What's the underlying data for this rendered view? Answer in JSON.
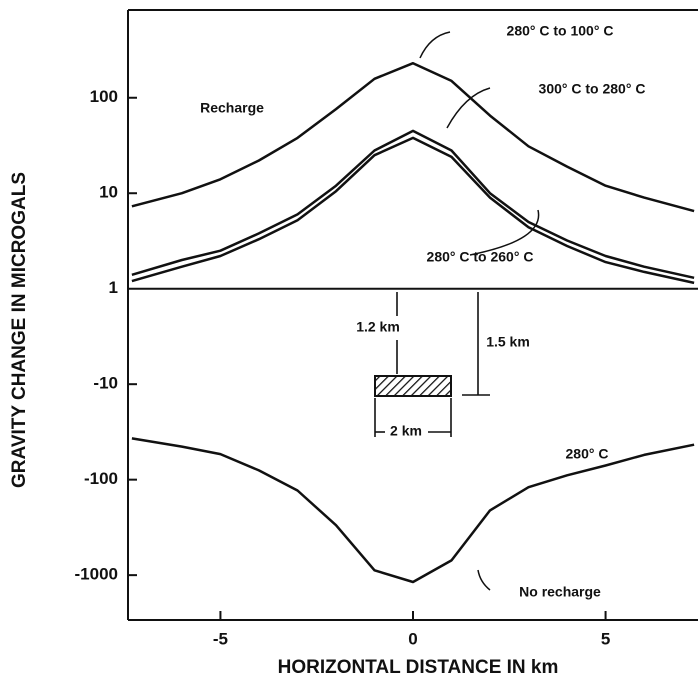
{
  "chart_data": {
    "type": "line",
    "x_label": "HORIZONTAL DISTANCE IN km",
    "y_label": "GRAVITY CHANGE IN MICROGALS",
    "y_scale": "symlog",
    "xlim": [
      -7.4,
      7.4
    ],
    "xticks": [
      -5,
      0,
      5
    ],
    "ylim": [
      -2950,
      830
    ],
    "yticks": [
      100,
      10,
      1,
      -10,
      -100,
      -1000
    ],
    "x": [
      -7.3,
      -6,
      -5,
      -4,
      -3,
      -2,
      -1,
      0,
      1,
      2,
      3,
      4,
      5,
      6,
      7.3
    ],
    "series": [
      {
        "name": "280° C to 100° C",
        "color": "#111111",
        "values": [
          7.3,
          10,
          14,
          22,
          38,
          76,
          158,
          230,
          150,
          65,
          31,
          19,
          12,
          9,
          6.5
        ]
      },
      {
        "name": "300° C to 280° C",
        "color": "#111111",
        "values": [
          1.4,
          2,
          2.5,
          3.8,
          6,
          12,
          28,
          45,
          28,
          10,
          5,
          3.2,
          2.2,
          1.7,
          1.3
        ]
      },
      {
        "name": "280° C to 260° C",
        "color": "#111111",
        "values": [
          1.2,
          1.7,
          2.2,
          3.3,
          5.2,
          10.5,
          25,
          38,
          24,
          9,
          4.4,
          2.8,
          1.9,
          1.5,
          1.15
        ]
      },
      {
        "name": "No recharge",
        "color": "#111111",
        "values": [
          -37,
          -45,
          -54,
          -80,
          -130,
          -300,
          -890,
          -1180,
          -700,
          -210,
          -120,
          -90,
          -71,
          -55,
          -43
        ]
      }
    ],
    "annotations": [
      "Recharge",
      "280° C",
      "1.2 km",
      "1.5 km",
      "2 km"
    ]
  }
}
